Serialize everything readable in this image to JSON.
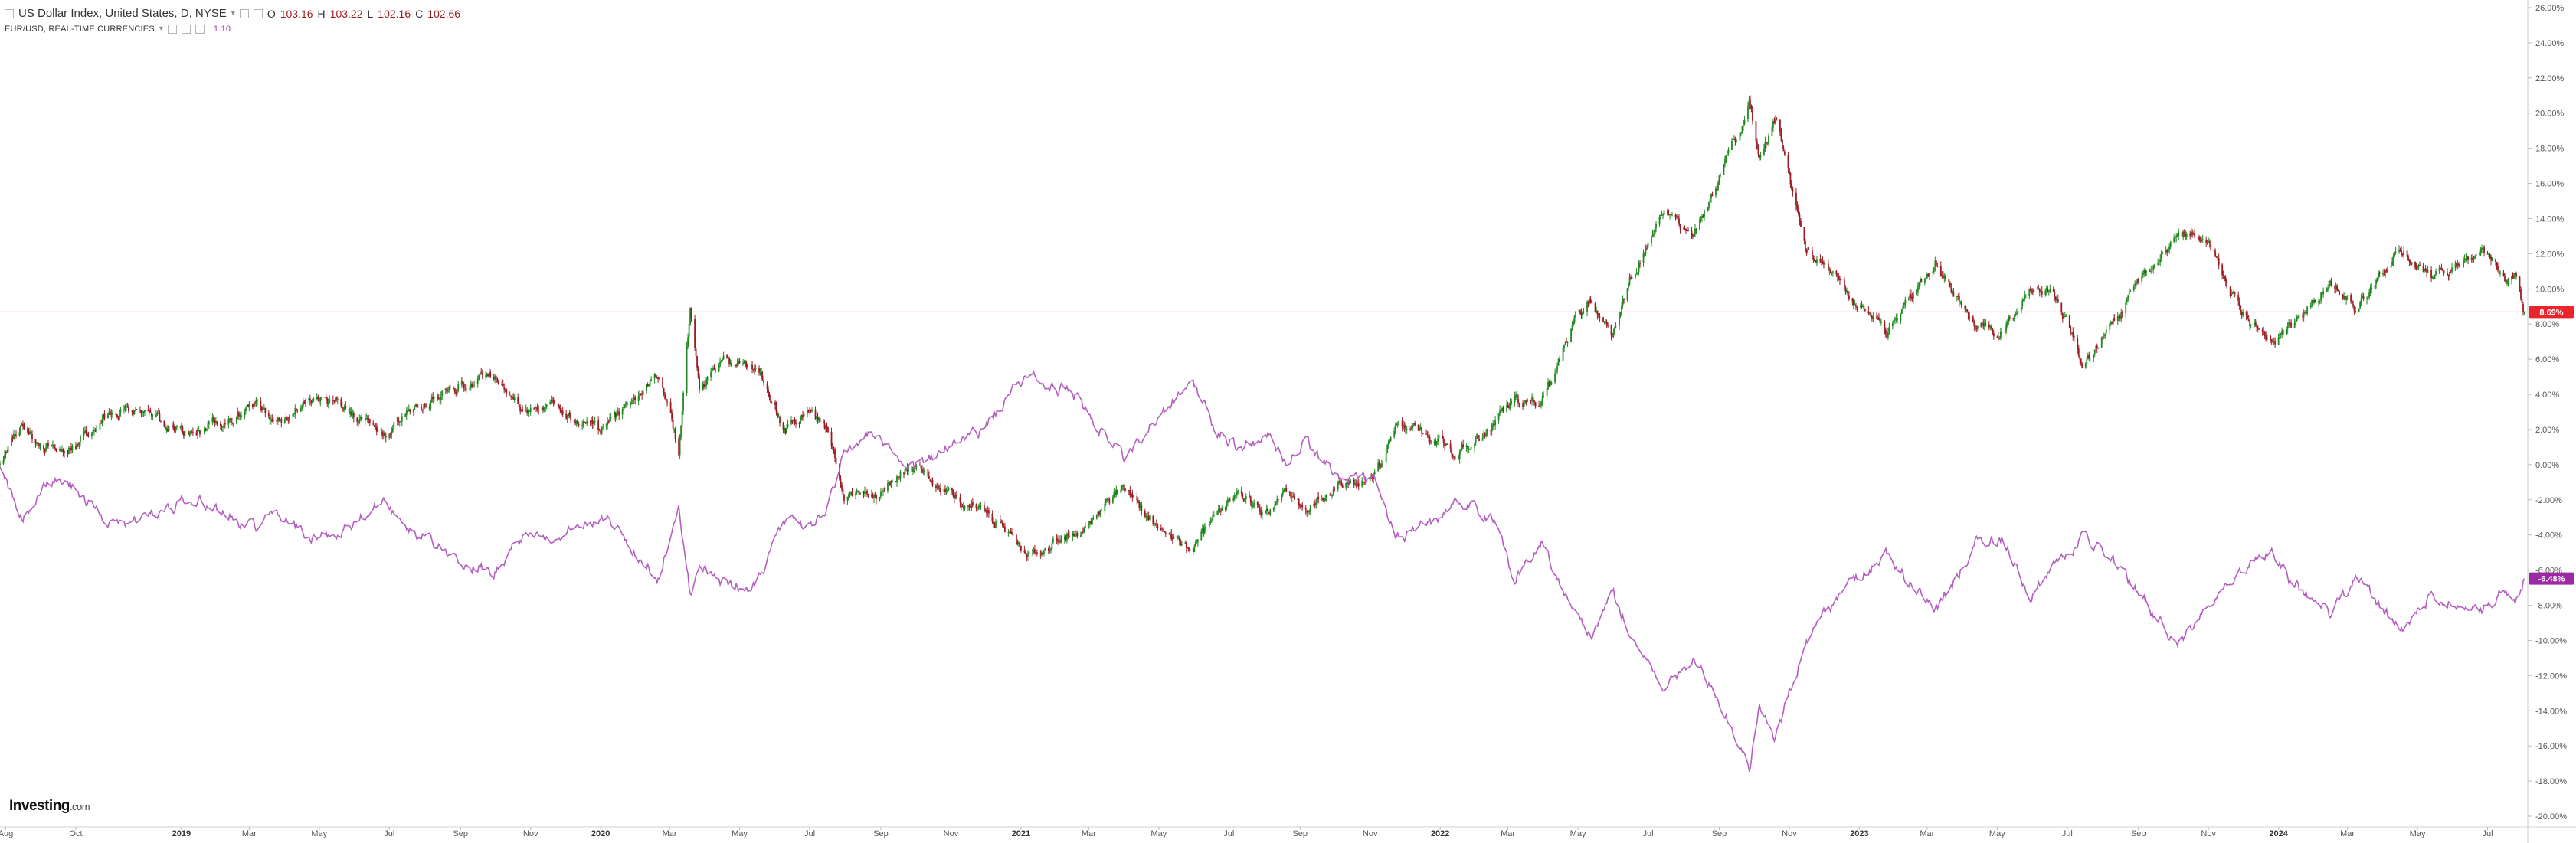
{
  "legend": {
    "usd": {
      "symbol": "US Dollar Index, United States, D, NYSE",
      "o_label": "O",
      "o": "103.16",
      "h_label": "H",
      "h": "103.22",
      "l_label": "L",
      "l": "102.16",
      "c_label": "C",
      "c": "102.66"
    },
    "eur": {
      "symbol": "EUR/USD, REAL-TIME CURRENCIES",
      "value": "1.10"
    }
  },
  "logo": {
    "name": "Investing",
    "suffix": ".com"
  },
  "colors": {
    "up": "#1f8a1f",
    "down": "#9c1b22",
    "eurusd": "#b45fc0",
    "eurusd_tag": "#9c2aa5",
    "current_line": "#f28a8a",
    "current_tag": "#e8252b"
  },
  "chart_data": {
    "type": "line",
    "yunit": "%",
    "ylim": [
      -20,
      26
    ],
    "yticks": [
      "26.00%",
      "24.00%",
      "22.00%",
      "20.00%",
      "18.00%",
      "16.00%",
      "14.00%",
      "12.00%",
      "10.00%",
      "8.00%",
      "6.00%",
      "4.00%",
      "2.00%",
      "0.00%",
      "-2.00%",
      "-4.00%",
      "-6.00%",
      "-8.00%",
      "-10.00%",
      "-12.00%",
      "-14.00%",
      "-16.00%",
      "-18.00%",
      "-20.00%"
    ],
    "xlim": [
      "2018-07-27",
      "2024-08-05"
    ],
    "xticks": [
      {
        "date": "2018-08-01",
        "label": "Aug"
      },
      {
        "date": "2018-10-01",
        "label": "Oct"
      },
      {
        "date": "2019-01-01",
        "label": "2019",
        "bold": true
      },
      {
        "date": "2019-03-01",
        "label": "Mar"
      },
      {
        "date": "2019-05-01",
        "label": "May"
      },
      {
        "date": "2019-07-01",
        "label": "Jul"
      },
      {
        "date": "2019-09-01",
        "label": "Sep"
      },
      {
        "date": "2019-11-01",
        "label": "Nov"
      },
      {
        "date": "2020-01-01",
        "label": "2020",
        "bold": true
      },
      {
        "date": "2020-03-01",
        "label": "Mar"
      },
      {
        "date": "2020-05-01",
        "label": "May"
      },
      {
        "date": "2020-07-01",
        "label": "Jul"
      },
      {
        "date": "2020-09-01",
        "label": "Sep"
      },
      {
        "date": "2020-11-01",
        "label": "Nov"
      },
      {
        "date": "2021-01-01",
        "label": "2021",
        "bold": true
      },
      {
        "date": "2021-03-01",
        "label": "Mar"
      },
      {
        "date": "2021-05-01",
        "label": "May"
      },
      {
        "date": "2021-07-01",
        "label": "Jul"
      },
      {
        "date": "2021-09-01",
        "label": "Sep"
      },
      {
        "date": "2021-11-01",
        "label": "Nov"
      },
      {
        "date": "2022-01-01",
        "label": "2022",
        "bold": true
      },
      {
        "date": "2022-03-01",
        "label": "Mar"
      },
      {
        "date": "2022-05-01",
        "label": "May"
      },
      {
        "date": "2022-07-01",
        "label": "Jul"
      },
      {
        "date": "2022-09-01",
        "label": "Sep"
      },
      {
        "date": "2022-11-01",
        "label": "Nov"
      },
      {
        "date": "2023-01-01",
        "label": "2023",
        "bold": true
      },
      {
        "date": "2023-03-01",
        "label": "Mar"
      },
      {
        "date": "2023-05-01",
        "label": "May"
      },
      {
        "date": "2023-07-01",
        "label": "Jul"
      },
      {
        "date": "2023-09-01",
        "label": "Sep"
      },
      {
        "date": "2023-11-01",
        "label": "Nov"
      },
      {
        "date": "2024-01-01",
        "label": "2024",
        "bold": true
      },
      {
        "date": "2024-03-01",
        "label": "Mar"
      },
      {
        "date": "2024-05-01",
        "label": "May"
      },
      {
        "date": "2024-07-01",
        "label": "Jul"
      }
    ],
    "current": {
      "usd": 8.69,
      "usd_label": "8.69%",
      "eurusd": -6.48,
      "eurusd_label": "-6.48%"
    },
    "series": [
      {
        "name": "US Dollar Index, United States, D, NYSE",
        "style": "candlestick",
        "points": [
          [
            "2018-07-27",
            0
          ],
          [
            "2018-08-15",
            2.2
          ],
          [
            "2018-09-05",
            0.9
          ],
          [
            "2018-10-01",
            1.2
          ],
          [
            "2018-10-20",
            2.5
          ],
          [
            "2018-11-12",
            3.2
          ],
          [
            "2018-12-15",
            2.3
          ],
          [
            "2019-01-10",
            1.8
          ],
          [
            "2019-02-15",
            2.8
          ],
          [
            "2019-03-07",
            3.4
          ],
          [
            "2019-03-25",
            2.5
          ],
          [
            "2019-04-25",
            3.6
          ],
          [
            "2019-05-15",
            3.5
          ],
          [
            "2019-06-25",
            1.8
          ],
          [
            "2019-07-15",
            2.8
          ],
          [
            "2019-08-01",
            3.5
          ],
          [
            "2019-09-03",
            4.6
          ],
          [
            "2019-09-30",
            5.0
          ],
          [
            "2019-10-25",
            3.2
          ],
          [
            "2019-11-15",
            3.6
          ],
          [
            "2019-12-31",
            1.9
          ],
          [
            "2020-01-20",
            2.9
          ],
          [
            "2020-02-19",
            5.4
          ],
          [
            "2020-03-09",
            0.8
          ],
          [
            "2020-03-19",
            8.8
          ],
          [
            "2020-03-27",
            4.1
          ],
          [
            "2020-04-15",
            5.9
          ],
          [
            "2020-05-15",
            5.3
          ],
          [
            "2020-06-10",
            2.1
          ],
          [
            "2020-06-30",
            3.1
          ],
          [
            "2020-07-15",
            2.0
          ],
          [
            "2020-07-31",
            -1.5
          ],
          [
            "2020-08-31",
            -1.7
          ],
          [
            "2020-09-25",
            -0.1
          ],
          [
            "2020-10-25",
            -1.5
          ],
          [
            "2020-11-30",
            -2.6
          ],
          [
            "2021-01-06",
            -5.1
          ],
          [
            "2021-02-15",
            -4.0
          ],
          [
            "2021-03-31",
            -1.4
          ],
          [
            "2021-05-15",
            -4.4
          ],
          [
            "2021-05-31",
            -5.0
          ],
          [
            "2021-06-20",
            -2.6
          ],
          [
            "2021-07-10",
            -1.8
          ],
          [
            "2021-08-05",
            -3.0
          ],
          [
            "2021-08-20",
            -1.6
          ],
          [
            "2021-09-05",
            -2.6
          ],
          [
            "2021-10-05",
            -1.2
          ],
          [
            "2021-11-05",
            -0.7
          ],
          [
            "2021-11-24",
            2.5
          ],
          [
            "2021-12-15",
            1.9
          ],
          [
            "2022-01-14",
            0.6
          ],
          [
            "2022-02-15",
            2.1
          ],
          [
            "2022-03-07",
            3.8
          ],
          [
            "2022-03-30",
            3.4
          ],
          [
            "2022-04-28",
            8.2
          ],
          [
            "2022-05-13",
            9.4
          ],
          [
            "2022-05-30",
            7.1
          ],
          [
            "2022-06-15",
            10.3
          ],
          [
            "2022-07-14",
            14.5
          ],
          [
            "2022-08-10",
            12.9
          ],
          [
            "2022-09-05",
            16.8
          ],
          [
            "2022-09-27",
            20.5
          ],
          [
            "2022-10-06",
            17.6
          ],
          [
            "2022-10-20",
            19.8
          ],
          [
            "2022-11-15",
            12.2
          ],
          [
            "2022-12-15",
            10.3
          ],
          [
            "2023-01-25",
            7.4
          ],
          [
            "2023-03-08",
            11.5
          ],
          [
            "2023-04-13",
            7.8
          ],
          [
            "2023-05-05",
            7.6
          ],
          [
            "2023-05-31",
            9.9
          ],
          [
            "2023-06-20",
            9.7
          ],
          [
            "2023-07-14",
            5.7
          ],
          [
            "2023-07-31",
            7.3
          ],
          [
            "2023-09-01",
            10.2
          ],
          [
            "2023-10-03",
            13.1
          ],
          [
            "2023-10-31",
            12.9
          ],
          [
            "2023-11-30",
            8.5
          ],
          [
            "2023-12-27",
            7.1
          ],
          [
            "2024-01-15",
            7.9
          ],
          [
            "2024-02-14",
            10.5
          ],
          [
            "2024-03-08",
            8.8
          ],
          [
            "2024-04-16",
            12.4
          ],
          [
            "2024-05-15",
            10.6
          ],
          [
            "2024-06-26",
            12.3
          ],
          [
            "2024-07-15",
            10.4
          ],
          [
            "2024-07-25",
            10.8
          ],
          [
            "2024-08-02",
            8.69
          ]
        ]
      },
      {
        "name": "EUR/USD, REAL-TIME CURRENCIES",
        "style": "line",
        "points": [
          [
            "2018-07-27",
            0
          ],
          [
            "2018-08-15",
            -3.0
          ],
          [
            "2018-09-05",
            -0.8
          ],
          [
            "2018-10-01",
            -1.3
          ],
          [
            "2018-10-20",
            -2.8
          ],
          [
            "2018-11-12",
            -3.6
          ],
          [
            "2018-12-15",
            -2.6
          ],
          [
            "2019-01-10",
            -1.9
          ],
          [
            "2019-02-15",
            -3.0
          ],
          [
            "2019-03-07",
            -3.6
          ],
          [
            "2019-03-25",
            -2.7
          ],
          [
            "2019-04-25",
            -4.2
          ],
          [
            "2019-05-15",
            -4.1
          ],
          [
            "2019-06-25",
            -2.2
          ],
          [
            "2019-07-15",
            -3.4
          ],
          [
            "2019-08-01",
            -4.2
          ],
          [
            "2019-09-03",
            -5.4
          ],
          [
            "2019-09-30",
            -6.0
          ],
          [
            "2019-10-25",
            -4.1
          ],
          [
            "2019-11-15",
            -4.5
          ],
          [
            "2019-12-31",
            -2.9
          ],
          [
            "2020-01-20",
            -4.0
          ],
          [
            "2020-02-19",
            -6.5
          ],
          [
            "2020-03-09",
            -2.5
          ],
          [
            "2020-03-19",
            -7.4
          ],
          [
            "2020-03-27",
            -5.6
          ],
          [
            "2020-04-15",
            -6.7
          ],
          [
            "2020-05-15",
            -6.9
          ],
          [
            "2020-06-10",
            -3.2
          ],
          [
            "2020-06-30",
            -3.3
          ],
          [
            "2020-07-15",
            -2.8
          ],
          [
            "2020-07-31",
            1.0
          ],
          [
            "2020-08-31",
            1.8
          ],
          [
            "2020-09-25",
            -0.4
          ],
          [
            "2020-10-25",
            0.8
          ],
          [
            "2020-11-30",
            2.0
          ],
          [
            "2021-01-06",
            5.1
          ],
          [
            "2021-02-15",
            4.1
          ],
          [
            "2021-03-31",
            0.3
          ],
          [
            "2021-05-15",
            3.8
          ],
          [
            "2021-05-31",
            4.5
          ],
          [
            "2021-06-20",
            2.0
          ],
          [
            "2021-07-10",
            0.9
          ],
          [
            "2021-08-05",
            1.6
          ],
          [
            "2021-08-20",
            0.3
          ],
          [
            "2021-09-05",
            1.5
          ],
          [
            "2021-10-05",
            -1.0
          ],
          [
            "2021-11-05",
            -1.0
          ],
          [
            "2021-11-24",
            -4.0
          ],
          [
            "2021-12-15",
            -3.6
          ],
          [
            "2022-01-14",
            -2.3
          ],
          [
            "2022-02-15",
            -2.9
          ],
          [
            "2022-03-07",
            -6.5
          ],
          [
            "2022-03-30",
            -4.6
          ],
          [
            "2022-04-28",
            -8.2
          ],
          [
            "2022-05-13",
            -9.8
          ],
          [
            "2022-05-30",
            -6.9
          ],
          [
            "2022-06-15",
            -9.6
          ],
          [
            "2022-07-14",
            -13.1
          ],
          [
            "2022-08-10",
            -11.0
          ],
          [
            "2022-09-05",
            -14.0
          ],
          [
            "2022-09-27",
            -17.6
          ],
          [
            "2022-10-06",
            -13.8
          ],
          [
            "2022-10-20",
            -15.5
          ],
          [
            "2022-11-15",
            -10.1
          ],
          [
            "2022-12-15",
            -7.4
          ],
          [
            "2023-01-25",
            -5.1
          ],
          [
            "2023-03-08",
            -8.5
          ],
          [
            "2023-04-13",
            -4.4
          ],
          [
            "2023-05-05",
            -4.2
          ],
          [
            "2023-05-31",
            -7.4
          ],
          [
            "2023-06-20",
            -5.5
          ],
          [
            "2023-07-14",
            -4.2
          ],
          [
            "2023-07-31",
            -4.8
          ],
          [
            "2023-09-01",
            -7.3
          ],
          [
            "2023-10-03",
            -10.2
          ],
          [
            "2023-10-31",
            -8.4
          ],
          [
            "2023-11-30",
            -6.0
          ],
          [
            "2023-12-27",
            -5.1
          ],
          [
            "2024-01-15",
            -6.9
          ],
          [
            "2024-02-14",
            -8.5
          ],
          [
            "2024-03-08",
            -6.5
          ],
          [
            "2024-04-16",
            -9.4
          ],
          [
            "2024-05-15",
            -7.2
          ],
          [
            "2024-06-26",
            -8.6
          ],
          [
            "2024-07-15",
            -6.8
          ],
          [
            "2024-07-25",
            -7.9
          ],
          [
            "2024-08-02",
            -6.48
          ]
        ]
      }
    ]
  }
}
